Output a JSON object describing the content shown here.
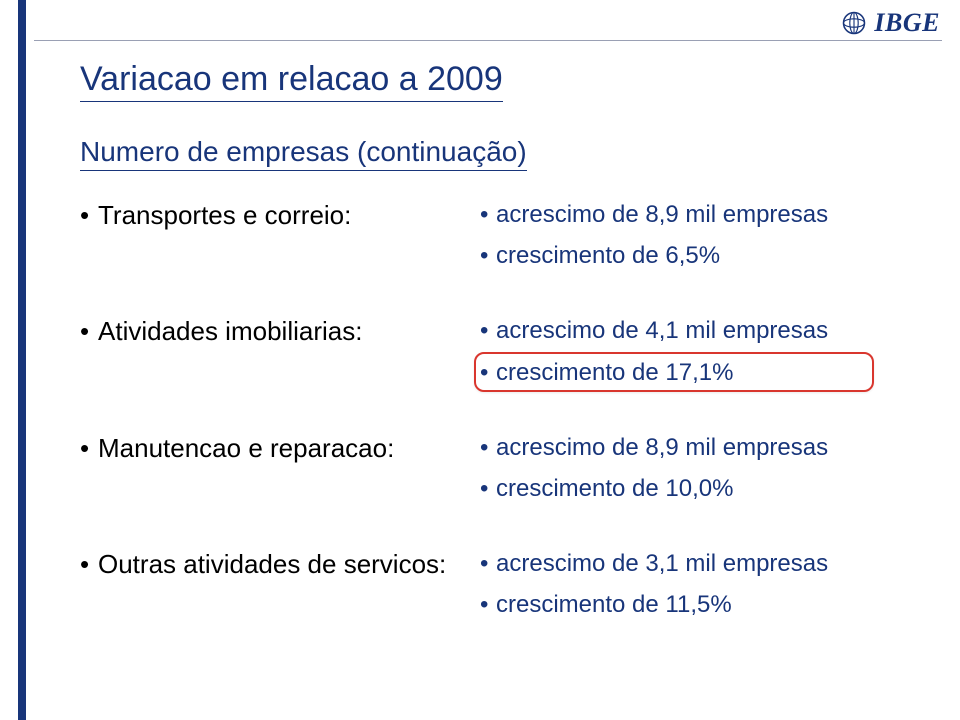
{
  "branding": {
    "logo_text": "IBGE",
    "stripe_color": "#18357a",
    "divider_color": "#9aa0b4",
    "logo_color": "#18357a"
  },
  "title": "Variacao em relacao a 2009",
  "subtitle": "Numero de empresas (continuação)",
  "colors": {
    "heading": "#18357a",
    "category_text": "#000000",
    "value_text": "#18357a",
    "highlight_border": "#d9362e",
    "background": "#ffffff"
  },
  "typography": {
    "title_fontsize_pt": 26,
    "subtitle_fontsize_pt": 21,
    "category_fontsize_pt": 20,
    "value_fontsize_pt": 18
  },
  "rows": [
    {
      "category": "Transportes e correio:",
      "values": [
        "acrescimo de 8,9 mil empresas",
        "crescimento de 6,5%"
      ],
      "highlight_value_index": null
    },
    {
      "category": "Atividades imobiliarias:",
      "values": [
        "acrescimo de 4,1 mil empresas",
        "crescimento de 17,1%"
      ],
      "highlight_value_index": 1
    },
    {
      "category": "Manutencao e reparacao:",
      "values": [
        "acrescimo de 8,9 mil empresas",
        "crescimento de 10,0%"
      ],
      "highlight_value_index": null
    },
    {
      "category": "Outras atividades de servicos:",
      "values": [
        "acrescimo de 3,1 mil empresas",
        "crescimento de 11,5%"
      ],
      "highlight_value_index": null
    }
  ]
}
